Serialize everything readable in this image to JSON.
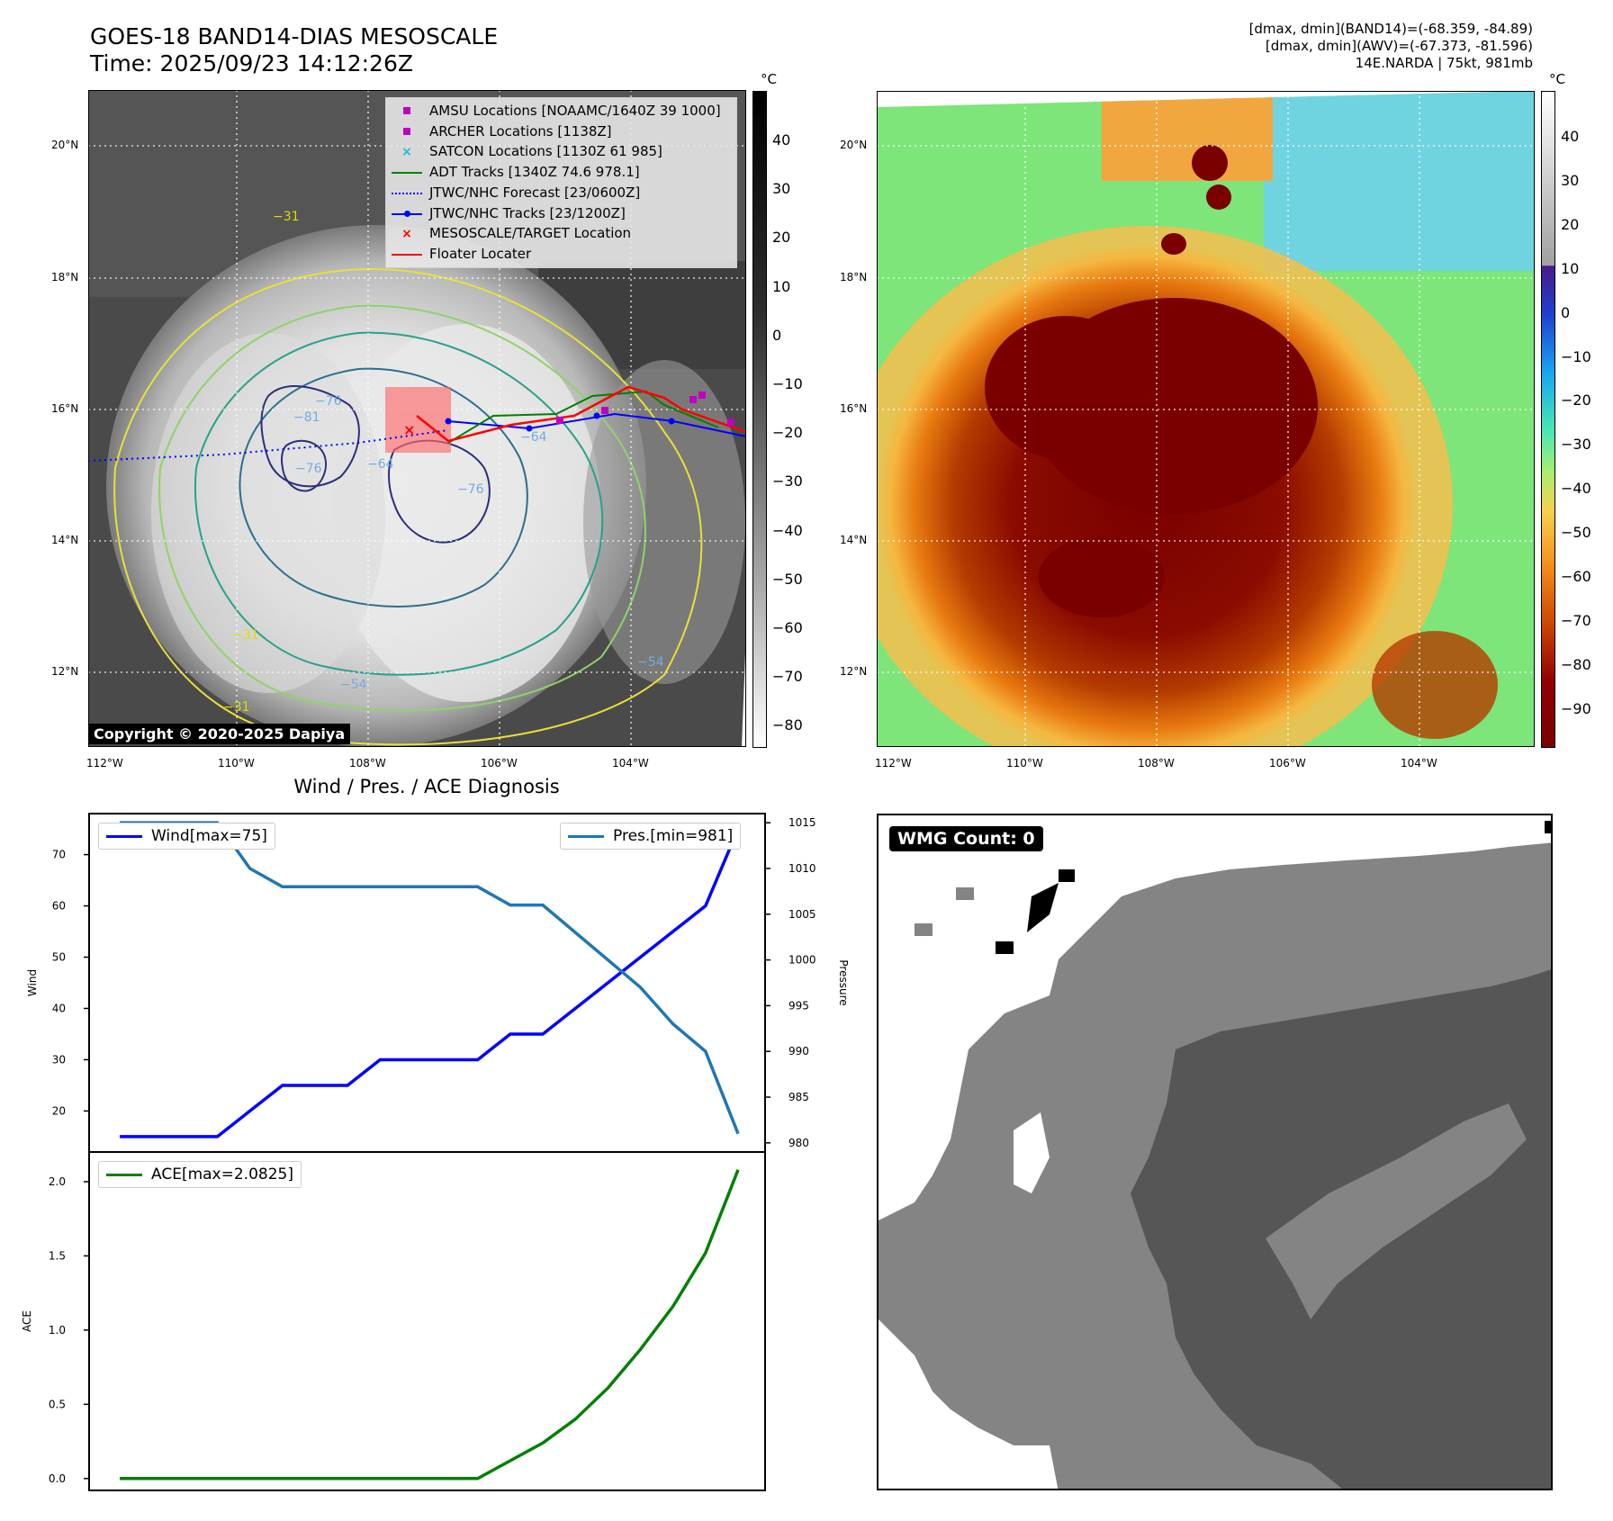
{
  "header": {
    "title_line1": "GOES-18 BAND14-DIAS MESOSCALE",
    "title_line2": "Time: 2025/09/23 14:12:26Z",
    "info_line1": "[dmax, dmin](BAND14)=(-68.359, -84.89)",
    "info_line2": "[dmax, dmin](AWV)=(-67.373, -81.596)",
    "info_line3": "14E.NARDA | 75kt, 981mb"
  },
  "copyright": "Copyright © 2020-2025 Dapiya",
  "map_axes": {
    "lon_ticks": [
      "112°W",
      "110°W",
      "108°W",
      "106°W",
      "104°W"
    ],
    "lat_ticks": [
      "20°N",
      "18°N",
      "16°N",
      "14°N",
      "12°N"
    ]
  },
  "colorbar_left": {
    "unit": "°C",
    "ticks": [
      "40",
      "30",
      "20",
      "10",
      "0",
      "−10",
      "−20",
      "−30",
      "−40",
      "−50",
      "−60",
      "−70",
      "−80"
    ]
  },
  "colorbar_right": {
    "unit": "°C",
    "ticks": [
      "40",
      "30",
      "20",
      "10",
      "0",
      "−10",
      "−20",
      "−30",
      "−40",
      "−50",
      "−60",
      "−70",
      "−80",
      "−90"
    ]
  },
  "contour_labels": [
    "−31",
    "−31",
    "−31",
    "−54",
    "−54",
    "−64",
    "−64",
    "−76",
    "−76",
    "−76",
    "−81"
  ],
  "map_legend": [
    {
      "label": "AMSU Locations [NOAAMC/1640Z 39 1000]",
      "symbol": "square",
      "color": "#c000c0"
    },
    {
      "label": "ARCHER Locations [1138Z]",
      "symbol": "square",
      "color": "#c000c0"
    },
    {
      "label": "SATCON Locations [1130Z 61 985]",
      "symbol": "x",
      "color": "#17becf"
    },
    {
      "label": "ADT Tracks [1340Z 74.6 978.1]",
      "symbol": "line",
      "color": "#008000"
    },
    {
      "label": "JTWC/NHC Forecast [23/0600Z]",
      "symbol": "dotted",
      "color": "#0000ff"
    },
    {
      "label": "JTWC/NHC Tracks [23/1200Z]",
      "symbol": "line-dot",
      "color": "#0000ff"
    },
    {
      "label": "MESOSCALE/TARGET Location",
      "symbol": "x",
      "color": "#ff0000"
    },
    {
      "label": "Floater Locater",
      "symbol": "line",
      "color": "#ff0000"
    }
  ],
  "wmg_label": "WMG Count: 0",
  "chart_data": [
    {
      "type": "line",
      "title": "Wind / Pres. / ACE Diagnosis",
      "ylabel": "Wind",
      "ylabel_right": "Pressure",
      "ylim": [
        12,
        78
      ],
      "ylim_right": [
        979,
        1016
      ],
      "yticks": [
        20,
        30,
        40,
        50,
        60,
        70
      ],
      "yticks_right": [
        980,
        985,
        990,
        995,
        1000,
        1005,
        1010,
        1015
      ],
      "x": [
        0,
        1,
        2,
        3,
        4,
        5,
        6,
        7,
        8,
        9,
        10,
        11,
        12,
        13,
        14,
        15,
        16,
        17,
        18,
        19
      ],
      "series": [
        {
          "name": "Wind[max=75]",
          "color": "#0000ff",
          "axis": "left",
          "values": [
            15,
            15,
            15,
            15,
            20,
            25,
            25,
            25,
            30,
            30,
            30,
            30,
            35,
            35,
            40,
            45,
            50,
            55,
            60,
            75
          ]
        },
        {
          "name": "Pres.[min=981]",
          "color": "#1f77b4",
          "axis": "right",
          "values": [
            1015,
            1015,
            1015,
            1015,
            1010,
            1008,
            1008,
            1008,
            1008,
            1008,
            1008,
            1008,
            1006,
            1006,
            1003,
            1000,
            997,
            993,
            990,
            981
          ]
        }
      ],
      "legend": [
        "top-left",
        "top-right"
      ]
    },
    {
      "type": "line",
      "ylabel": "ACE",
      "ylim": [
        -0.08,
        2.2
      ],
      "yticks": [
        "0.0",
        "0.5",
        "1.0",
        "1.5",
        "2.0"
      ],
      "x": [
        0,
        1,
        2,
        3,
        4,
        5,
        6,
        7,
        8,
        9,
        10,
        11,
        12,
        13,
        14,
        15,
        16,
        17,
        18,
        19
      ],
      "series": [
        {
          "name": "ACE[max=2.0825]",
          "color": "#008000",
          "values": [
            0,
            0,
            0,
            0,
            0,
            0,
            0,
            0,
            0,
            0,
            0,
            0,
            0.12,
            0.24,
            0.4,
            0.61,
            0.87,
            1.16,
            1.52,
            2.08
          ]
        }
      ],
      "legend": "top-left"
    }
  ]
}
